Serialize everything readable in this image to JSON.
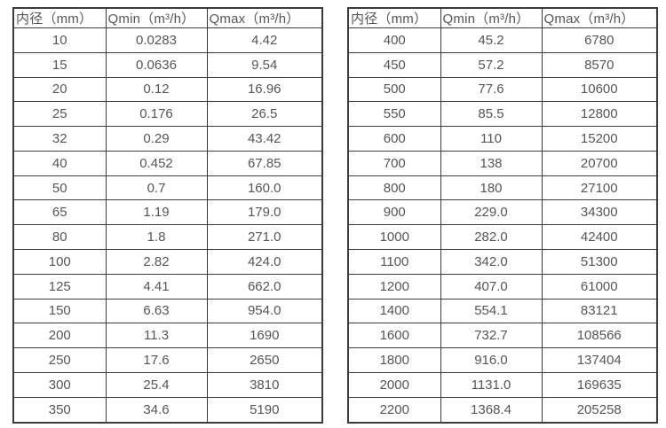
{
  "page": {
    "background": "#ffffff",
    "text_color": "#555555",
    "border_color": "#3b3b3b"
  },
  "tables": [
    {
      "name": "flow-table-small-diameters",
      "headers": [
        "内径（mm）",
        "Qmin（m³/h）",
        "Qmax（m³/h）"
      ],
      "rows": [
        [
          "10",
          "0.0283",
          "4.42"
        ],
        [
          "15",
          "0.0636",
          "9.54"
        ],
        [
          "20",
          "0.12",
          "16.96"
        ],
        [
          "25",
          "0.176",
          "26.5"
        ],
        [
          "32",
          "0.29",
          "43.42"
        ],
        [
          "40",
          "0.452",
          "67.85"
        ],
        [
          "50",
          "0.7",
          "160.0"
        ],
        [
          "65",
          "1.19",
          "179.0"
        ],
        [
          "80",
          "1.8",
          "271.0"
        ],
        [
          "100",
          "2.82",
          "424.0"
        ],
        [
          "125",
          "4.41",
          "662.0"
        ],
        [
          "150",
          "6.63",
          "954.0"
        ],
        [
          "200",
          "11.3",
          "1690"
        ],
        [
          "250",
          "17.6",
          "2650"
        ],
        [
          "300",
          "25.4",
          "3810"
        ],
        [
          "350",
          "34.6",
          "5190"
        ]
      ]
    },
    {
      "name": "flow-table-large-diameters",
      "headers": [
        "内径（mm）",
        "Qmin（m³/h）",
        "Qmax（m³/h）"
      ],
      "rows": [
        [
          "400",
          "45.2",
          "6780"
        ],
        [
          "450",
          "57.2",
          "8570"
        ],
        [
          "500",
          "77.6",
          "10600"
        ],
        [
          "550",
          "85.5",
          "12800"
        ],
        [
          "600",
          "110",
          "15200"
        ],
        [
          "700",
          "138",
          "20700"
        ],
        [
          "800",
          "180",
          "27100"
        ],
        [
          "900",
          "229.0",
          "34300"
        ],
        [
          "1000",
          "282.0",
          "42400"
        ],
        [
          "1100",
          "342.0",
          "51300"
        ],
        [
          "1200",
          "407.0",
          "61000"
        ],
        [
          "1400",
          "554.1",
          "83121"
        ],
        [
          "1600",
          "732.7",
          "108566"
        ],
        [
          "1800",
          "916.0",
          "137404"
        ],
        [
          "2000",
          "1131.0",
          "169635"
        ],
        [
          "2200",
          "1368.4",
          "205258"
        ]
      ]
    }
  ]
}
